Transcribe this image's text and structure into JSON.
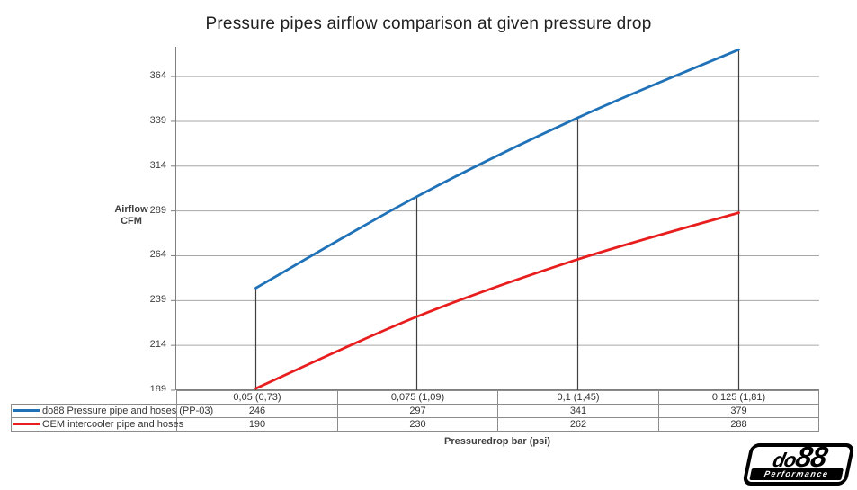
{
  "chart": {
    "title": "Pressure pipes airflow comparison at given pressure drop",
    "y_axis_title_line1": "Airflow",
    "y_axis_title_line2": "CFM",
    "x_axis_title": "Pressuredrop bar (psi)"
  },
  "chart_data": {
    "type": "line",
    "title": "Pressure pipes airflow comparison at given pressure drop",
    "xlabel": "Pressuredrop bar (psi)",
    "ylabel": "Airflow CFM",
    "categories": [
      "0,05 (0,73)",
      "0,075 (1,09)",
      "0,1 (1,45)",
      "0,125 (1,81)"
    ],
    "series": [
      {
        "name": "do88 Pressure pipe and hoses (PP-03)",
        "color": "#1F72B8",
        "values": [
          246,
          297,
          341,
          379
        ]
      },
      {
        "name": "OEM intercooler pipe and hoses",
        "color": "#E81E1E",
        "values": [
          190,
          230,
          262,
          288
        ]
      }
    ],
    "yticks": [
      189,
      214,
      239,
      264,
      289,
      314,
      339,
      364
    ],
    "ylim": [
      189,
      380.6
    ],
    "grid": "horizontal",
    "legend_position": "table-left-column",
    "drop_lines": "vertical line at each category from x-axis up to first series point"
  },
  "colors": {
    "series_blue": "#1F72B8",
    "series_red": "#E81E1E",
    "gridline": "#A6A6A6",
    "axis": "#7F7F7F",
    "drop_line": "#3f3f3f",
    "table_border": "#8c8c8c"
  },
  "logo": {
    "brand_prefix": "do",
    "brand_suffix": "88",
    "tagline": "Performance"
  }
}
